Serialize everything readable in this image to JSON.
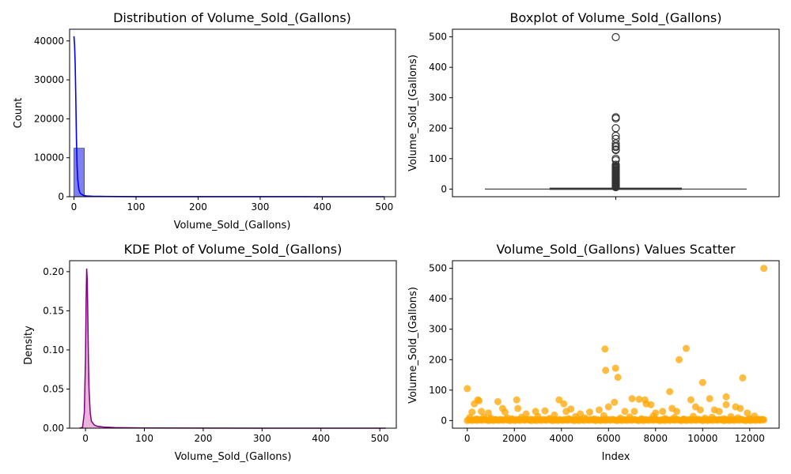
{
  "chart_data": [
    {
      "type": "histogram",
      "title": "Distribution of Volume_Sold_(Gallons)",
      "xlabel": "Volume_Sold_(Gallons)",
      "ylabel": "Count",
      "xlim": [
        -7,
        518
      ],
      "ylim": [
        0,
        43000
      ],
      "xticks": [
        0,
        100,
        200,
        300,
        400,
        500
      ],
      "yticks": [
        0,
        10000,
        20000,
        30000,
        40000
      ],
      "bins": [
        {
          "x0": 0,
          "x1": 16.7,
          "count": 12450
        },
        {
          "x0": 16.7,
          "x1": 33.4,
          "count": 80
        },
        {
          "x0": 33.4,
          "x1": 50.1,
          "count": 25
        },
        {
          "x0": 50.1,
          "x1": 66.8,
          "count": 12
        },
        {
          "x0": 66.8,
          "x1": 83.5,
          "count": 8
        },
        {
          "x0": 83.5,
          "x1": 100.2,
          "count": 4
        },
        {
          "x0": 116.9,
          "x1": 133.6,
          "count": 2
        },
        {
          "x0": 133.6,
          "x1": 150.3,
          "count": 3
        },
        {
          "x0": 150.3,
          "x1": 167,
          "count": 2
        },
        {
          "x0": 167,
          "x1": 183.7,
          "count": 1
        },
        {
          "x0": 200.4,
          "x1": 217.1,
          "count": 1
        },
        {
          "x0": 233.8,
          "x1": 250.5,
          "count": 2
        },
        {
          "x0": 484.3,
          "x1": 501,
          "count": 1
        }
      ],
      "kde": {
        "x": [
          0,
          1,
          2,
          3,
          4,
          5,
          6,
          8,
          10,
          15,
          20,
          30,
          50,
          100,
          200,
          300,
          400,
          500
        ],
        "y": [
          41200,
          39000,
          34000,
          25000,
          15000,
          8000,
          4500,
          1800,
          900,
          350,
          200,
          120,
          60,
          20,
          8,
          4,
          2,
          1
        ]
      },
      "bar_color": "#8080f5",
      "line_color": "#0000ff"
    },
    {
      "type": "boxplot",
      "title": "Boxplot of Volume_Sold_(Gallons)",
      "xlabel": "",
      "ylabel": "Volume_Sold_(Gallons)",
      "ylim": [
        -25,
        525
      ],
      "yticks": [
        0,
        100,
        200,
        300,
        400,
        500
      ],
      "whisker_low": 0.13,
      "q1": 0.8,
      "median": 1.5,
      "q3": 3,
      "whisker_high": 5,
      "outliers": [
        499,
        236,
        232,
        200,
        175,
        165,
        150,
        142,
        138,
        130,
        128,
        100,
        95,
        80,
        75,
        72,
        70,
        68,
        65,
        62,
        60,
        58,
        55,
        52,
        50,
        48,
        45,
        42,
        40,
        38,
        36,
        34,
        32,
        30,
        28,
        26,
        24,
        22,
        20,
        18,
        16,
        14,
        12,
        10,
        8,
        6
      ],
      "box_color": "#1f77b4"
    },
    {
      "type": "kde",
      "title": "KDE Plot of Volume_Sold_(Gallons)",
      "xlabel": "Volume_Sold_(Gallons)",
      "ylabel": "Density",
      "xlim": [
        -27,
        528
      ],
      "ylim": [
        0,
        0.214
      ],
      "xticks": [
        0,
        100,
        200,
        300,
        400,
        500
      ],
      "yticks": [
        0.0,
        0.05,
        0.1,
        0.15,
        0.2
      ],
      "ytick_labels": [
        "0.00",
        "0.05",
        "0.10",
        "0.15",
        "0.20"
      ],
      "x": [
        -10,
        -5,
        -2,
        0,
        1,
        2,
        3,
        4,
        5,
        6,
        8,
        10,
        15,
        20,
        30,
        50,
        100,
        200,
        300,
        400,
        500,
        510
      ],
      "y": [
        0,
        0.001,
        0.02,
        0.09,
        0.16,
        0.204,
        0.19,
        0.14,
        0.085,
        0.05,
        0.02,
        0.009,
        0.004,
        0.0025,
        0.0015,
        0.0008,
        0.0003,
        0.0001,
        5e-05,
        3e-05,
        2e-05,
        0
      ],
      "line_color": "#800080",
      "fill_color": "#e6a8d7"
    },
    {
      "type": "scatter",
      "title": "Volume_Sold_(Gallons) Values Scatter",
      "xlabel": "Index",
      "ylabel": "Volume_Sold_(Gallons)",
      "xlim": [
        -630,
        13250
      ],
      "ylim": [
        -25,
        525
      ],
      "xticks": [
        0,
        2000,
        4000,
        6000,
        8000,
        10000,
        12000
      ],
      "yticks": [
        0,
        100,
        200,
        300,
        400,
        500
      ],
      "color": "#ffa500",
      "points": [
        [
          0,
          105
        ],
        [
          200,
          28
        ],
        [
          300,
          55
        ],
        [
          450,
          68
        ],
        [
          500,
          65
        ],
        [
          600,
          30
        ],
        [
          900,
          25
        ],
        [
          1300,
          62
        ],
        [
          1500,
          40
        ],
        [
          1600,
          28
        ],
        [
          2100,
          68
        ],
        [
          2150,
          40
        ],
        [
          2500,
          22
        ],
        [
          2900,
          30
        ],
        [
          3300,
          32
        ],
        [
          3900,
          68
        ],
        [
          4100,
          55
        ],
        [
          4200,
          30
        ],
        [
          4400,
          38
        ],
        [
          4800,
          22
        ],
        [
          5200,
          28
        ],
        [
          5600,
          35
        ],
        [
          5850,
          235
        ],
        [
          5880,
          165
        ],
        [
          6000,
          45
        ],
        [
          6250,
          60
        ],
        [
          6300,
          172
        ],
        [
          6400,
          142
        ],
        [
          6700,
          30
        ],
        [
          7000,
          72
        ],
        [
          7100,
          30
        ],
        [
          7300,
          70
        ],
        [
          7550,
          68
        ],
        [
          7600,
          55
        ],
        [
          7800,
          52
        ],
        [
          8000,
          25
        ],
        [
          8300,
          30
        ],
        [
          8600,
          95
        ],
        [
          8700,
          40
        ],
        [
          8900,
          30
        ],
        [
          9000,
          200
        ],
        [
          9300,
          237
        ],
        [
          9500,
          68
        ],
        [
          9700,
          45
        ],
        [
          9900,
          35
        ],
        [
          10000,
          125
        ],
        [
          10300,
          72
        ],
        [
          10500,
          35
        ],
        [
          10700,
          30
        ],
        [
          11000,
          78
        ],
        [
          11000,
          52
        ],
        [
          11400,
          45
        ],
        [
          11600,
          40
        ],
        [
          11700,
          140
        ],
        [
          11900,
          25
        ],
        [
          12200,
          15
        ],
        [
          12600,
          500
        ],
        [
          100,
          10
        ],
        [
          400,
          5
        ],
        [
          700,
          12
        ],
        [
          1000,
          8
        ],
        [
          1200,
          3
        ],
        [
          1700,
          9
        ],
        [
          1900,
          6
        ],
        [
          2300,
          11
        ],
        [
          2700,
          4
        ],
        [
          3000,
          14
        ],
        [
          3500,
          7
        ],
        [
          3700,
          18
        ],
        [
          4300,
          6
        ],
        [
          4600,
          13
        ],
        [
          5000,
          9
        ],
        [
          5400,
          5
        ],
        [
          5800,
          16
        ],
        [
          6500,
          8
        ],
        [
          6900,
          12
        ],
        [
          7400,
          6
        ],
        [
          7900,
          15
        ],
        [
          8400,
          7
        ],
        [
          8800,
          10
        ],
        [
          9200,
          5
        ],
        [
          9600,
          14
        ],
        [
          10100,
          8
        ],
        [
          10400,
          11
        ],
        [
          10900,
          6
        ],
        [
          11200,
          13
        ],
        [
          11500,
          9
        ],
        [
          12000,
          7
        ],
        [
          12400,
          4
        ],
        [
          12550,
          3
        ]
      ]
    }
  ]
}
